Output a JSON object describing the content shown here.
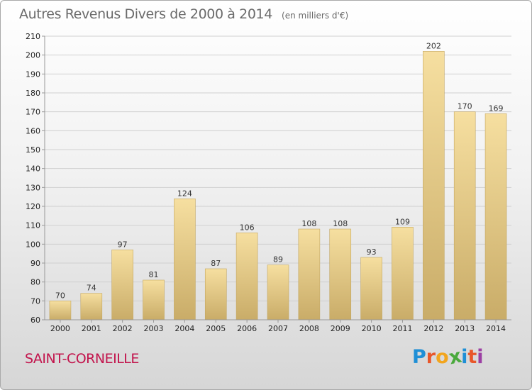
{
  "title": "Autres Revenus Divers de 2000 à 2014",
  "title_unit": "(en milliers d'€)",
  "location": "SAINT-CORNEILLE",
  "logo": {
    "text": "Proxiti",
    "letters": [
      {
        "ch": "P",
        "color": "#1f8fd6"
      },
      {
        "ch": "r",
        "color": "#e8572a"
      },
      {
        "ch": "o",
        "color": "#f2a51e"
      },
      {
        "ch": "x",
        "color": "#4aa93c"
      },
      {
        "ch": "i",
        "color": "#1f8fd6"
      },
      {
        "ch": "t",
        "color": "#e8572a"
      },
      {
        "ch": "i",
        "color": "#9c3fa3"
      }
    ]
  },
  "colors": {
    "bar_light": "#f6dfa0",
    "bar_dark": "#c9ac68",
    "bar_border": "#c4a761",
    "grid": "#d0d0d0",
    "axis": "#999999",
    "title": "#6a6a6a",
    "location": "#c2144c"
  },
  "chart_data": {
    "type": "bar",
    "categories": [
      "2000",
      "2001",
      "2002",
      "2003",
      "2004",
      "2005",
      "2006",
      "2007",
      "2008",
      "2009",
      "2010",
      "2011",
      "2012",
      "2013",
      "2014"
    ],
    "values": [
      70,
      74,
      97,
      81,
      124,
      87,
      106,
      89,
      108,
      108,
      93,
      109,
      202,
      170,
      169
    ],
    "ylim": [
      60,
      210
    ],
    "yticks": [
      60,
      70,
      80,
      90,
      100,
      110,
      120,
      130,
      140,
      150,
      160,
      170,
      180,
      190,
      200,
      210
    ],
    "grid": true,
    "data_labels": true
  }
}
